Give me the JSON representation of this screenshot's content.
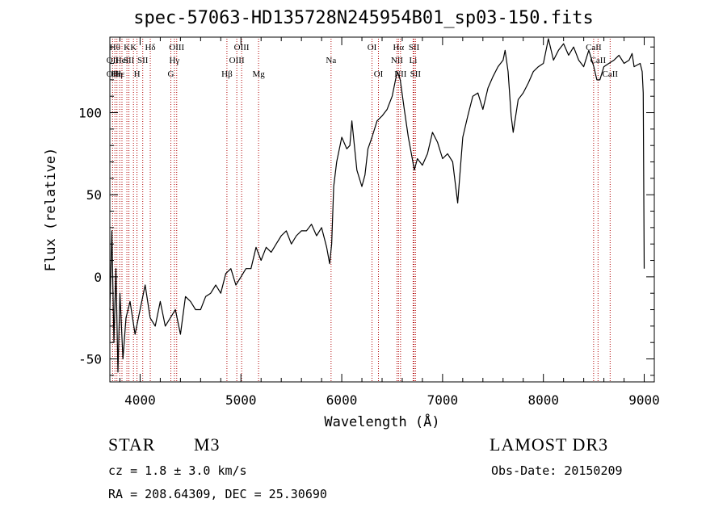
{
  "title": "spec-57063-HD135728N245954B01_sp03-150.fits",
  "info": {
    "class_label": "STAR",
    "subclass_label": "M3",
    "survey": "LAMOST DR3",
    "cz": "cz = 1.8 ± 3.0 km/s",
    "obs_date": "Obs-Date: 20150209",
    "coords": "RA = 208.64309, DEC =  25.30690"
  },
  "colors": {
    "line": "#000000",
    "marker": "#b00000"
  },
  "chart_data": {
    "type": "line",
    "xlabel": "Wavelength (Å)",
    "ylabel": "Flux (relative)",
    "xlim": [
      3700,
      9100
    ],
    "ylim": [
      -64,
      146
    ],
    "xticks": [
      4000,
      5000,
      6000,
      7000,
      8000,
      9000
    ],
    "yticks": [
      -50,
      0,
      50,
      100
    ],
    "series": [
      {
        "x": [
          3700,
          3720,
          3740,
          3760,
          3780,
          3800,
          3830,
          3860,
          3900,
          3950,
          4000,
          4050,
          4100,
          4150,
          4200,
          4250,
          4300,
          4350,
          4400,
          4450,
          4500,
          4550,
          4600,
          4650,
          4700,
          4750,
          4800,
          4850,
          4900,
          4950,
          5000,
          5050,
          5100,
          5150,
          5200,
          5250,
          5300,
          5350,
          5400,
          5450,
          5500,
          5550,
          5600,
          5650,
          5700,
          5750,
          5800,
          5850,
          5880,
          5900,
          5920,
          5950,
          6000,
          6050,
          6080,
          6100,
          6150,
          6200,
          6230,
          6260,
          6300,
          6350,
          6400,
          6450,
          6500,
          6550,
          6580,
          6620,
          6660,
          6700,
          6720,
          6750,
          6800,
          6850,
          6900,
          6950,
          7000,
          7050,
          7100,
          7130,
          7150,
          7200,
          7250,
          7300,
          7350,
          7400,
          7450,
          7500,
          7550,
          7600,
          7620,
          7650,
          7680,
          7700,
          7750,
          7800,
          7850,
          7900,
          7950,
          8000,
          8050,
          8100,
          8150,
          8200,
          8250,
          8300,
          8350,
          8400,
          8450,
          8500,
          8530,
          8560,
          8600,
          8650,
          8700,
          8750,
          8800,
          8850,
          8880,
          8900,
          8960,
          8980,
          8990,
          9000
        ],
        "y": [
          -20,
          28,
          -40,
          5,
          -58,
          -10,
          -50,
          -25,
          -15,
          -35,
          -20,
          -5,
          -25,
          -30,
          -15,
          -30,
          -25,
          -20,
          -35,
          -12,
          -15,
          -20,
          -20,
          -12,
          -10,
          -5,
          -10,
          2,
          5,
          -5,
          0,
          5,
          5,
          18,
          10,
          18,
          15,
          20,
          25,
          28,
          20,
          25,
          28,
          28,
          32,
          25,
          30,
          18,
          8,
          20,
          55,
          70,
          85,
          78,
          80,
          95,
          65,
          55,
          62,
          78,
          85,
          95,
          98,
          102,
          110,
          125,
          120,
          102,
          85,
          72,
          65,
          72,
          68,
          75,
          88,
          82,
          72,
          75,
          70,
          55,
          45,
          85,
          98,
          110,
          112,
          102,
          115,
          122,
          128,
          132,
          138,
          125,
          98,
          88,
          108,
          112,
          118,
          125,
          128,
          130,
          145,
          132,
          138,
          142,
          135,
          140,
          132,
          128,
          138,
          128,
          120,
          120,
          128,
          130,
          132,
          135,
          130,
          132,
          136,
          128,
          130,
          125,
          112,
          5
        ]
      }
    ],
    "lines": [
      {
        "x": 3727,
        "rows": [
          {
            "t": "OII",
            "r": 2
          },
          {
            "t": "OII",
            "r": 3
          }
        ]
      },
      {
        "x": 3750,
        "rows": [
          {
            "t": "Hθ",
            "r": 1
          }
        ]
      },
      {
        "x": 3770,
        "rows": [
          {
            "t": "Hη",
            "r": 3
          }
        ]
      },
      {
        "x": 3798,
        "rows": [
          {
            "t": "Hε",
            "r": 3
          }
        ]
      },
      {
        "x": 3820,
        "rows": [
          {
            "t": "HeI",
            "r": 2
          }
        ]
      },
      {
        "x": 3869,
        "rows": [
          {
            "t": "K",
            "r": 1
          }
        ]
      },
      {
        "x": 3889,
        "rows": [
          {
            "t": "SII",
            "r": 2
          }
        ]
      },
      {
        "x": 3934,
        "rows": [
          {
            "t": "K",
            "r": 1
          }
        ]
      },
      {
        "x": 3969,
        "rows": [
          {
            "t": "H",
            "r": 3
          }
        ]
      },
      {
        "x": 4026,
        "rows": [
          {
            "t": "SII",
            "r": 2
          }
        ]
      },
      {
        "x": 4101,
        "rows": [
          {
            "t": "Hδ",
            "r": 1
          }
        ]
      },
      {
        "x": 4305,
        "rows": [
          {
            "t": "G",
            "r": 3
          }
        ]
      },
      {
        "x": 4340,
        "rows": [
          {
            "t": "Hγ",
            "r": 2
          }
        ]
      },
      {
        "x": 4363,
        "rows": [
          {
            "t": "OIII",
            "r": 1
          }
        ]
      },
      {
        "x": 4861,
        "rows": [
          {
            "t": "Hβ",
            "r": 3
          }
        ]
      },
      {
        "x": 4959,
        "rows": [
          {
            "t": "OIII",
            "r": 2
          }
        ]
      },
      {
        "x": 5007,
        "rows": [
          {
            "t": "OIII",
            "r": 1
          }
        ]
      },
      {
        "x": 5175,
        "rows": [
          {
            "t": "Mg",
            "r": 3
          }
        ]
      },
      {
        "x": 5894,
        "rows": [
          {
            "t": "Na",
            "r": 2
          }
        ]
      },
      {
        "x": 6300,
        "rows": [
          {
            "t": "OI",
            "r": 1
          }
        ]
      },
      {
        "x": 6364,
        "rows": [
          {
            "t": "OI",
            "r": 3
          }
        ]
      },
      {
        "x": 6548,
        "rows": [
          {
            "t": "NII",
            "r": 2
          }
        ]
      },
      {
        "x": 6563,
        "rows": [
          {
            "t": "Hα",
            "r": 1
          }
        ]
      },
      {
        "x": 6583,
        "rows": [
          {
            "t": "NII",
            "r": 3
          }
        ]
      },
      {
        "x": 6708,
        "rows": [
          {
            "t": "Li",
            "r": 2
          }
        ]
      },
      {
        "x": 6717,
        "rows": [
          {
            "t": "SII",
            "r": 1
          }
        ]
      },
      {
        "x": 6731,
        "rows": [
          {
            "t": "SII",
            "r": 3
          }
        ]
      },
      {
        "x": 8498,
        "rows": [
          {
            "t": "CaII",
            "r": 1
          }
        ]
      },
      {
        "x": 8542,
        "rows": [
          {
            "t": "CaII",
            "r": 2
          }
        ]
      },
      {
        "x": 8662,
        "rows": [
          {
            "t": "CaII",
            "r": 3
          }
        ]
      }
    ]
  }
}
